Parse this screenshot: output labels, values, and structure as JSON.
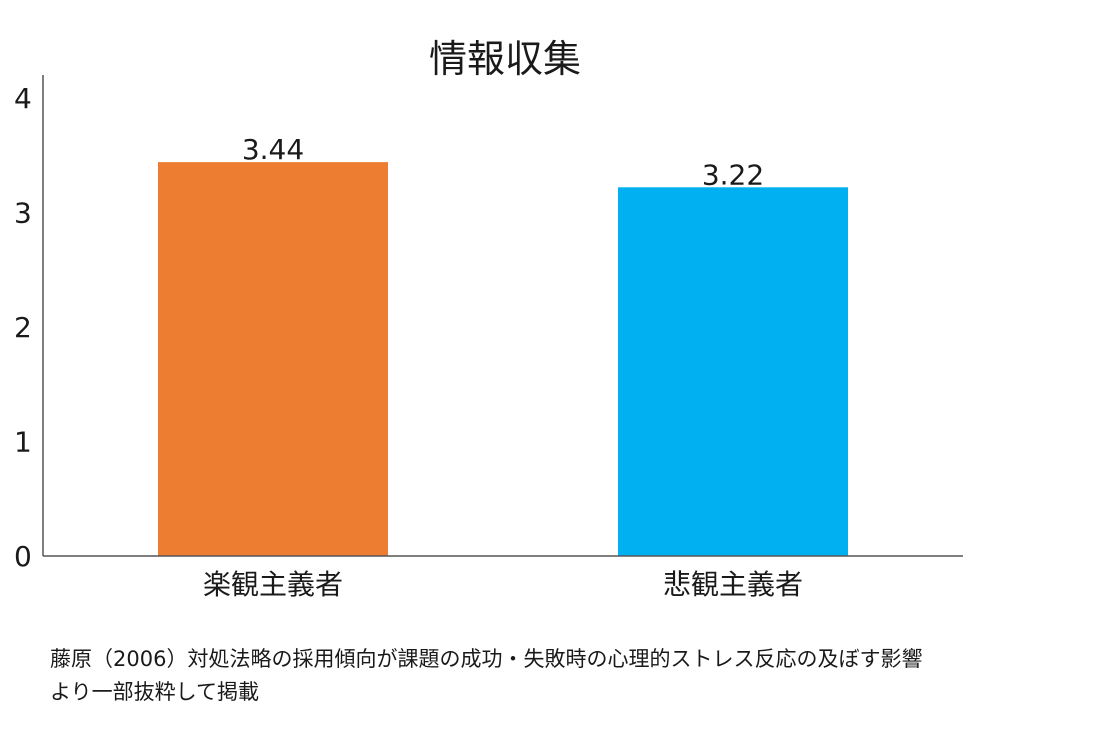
{
  "chart_data": {
    "type": "bar",
    "title": "情報収集",
    "categories": [
      "楽観主義者",
      "悲観主義者"
    ],
    "values": [
      3.44,
      3.22
    ],
    "value_labels": [
      "3.44",
      "3.22"
    ],
    "colors": [
      "#ED7D31",
      "#00B0F0"
    ],
    "ylim": [
      0,
      4
    ],
    "yticks": [
      "0",
      "1",
      "2",
      "3",
      "4"
    ],
    "grid": false,
    "legend": "none",
    "xlabel": "",
    "ylabel": ""
  },
  "caption": {
    "line1": "藤原（2006）対処法略の採用傾向が課題の成功・失敗時の心理的ストレス反応の及ぼす影響",
    "line2": "より一部抜粋して掲載"
  }
}
